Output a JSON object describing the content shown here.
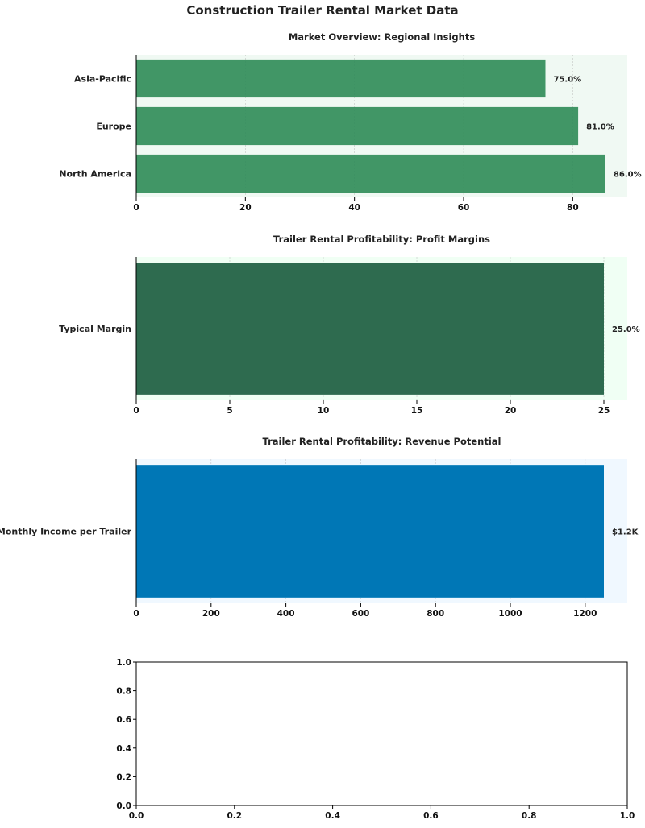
{
  "figure": {
    "title": "Construction Trailer Rental Market Data"
  },
  "chart_data": [
    {
      "type": "bar",
      "orientation": "horizontal",
      "title": "Market Overview: Regional Insights",
      "categories": [
        "North America",
        "Europe",
        "Asia-Pacific"
      ],
      "values": [
        86.0,
        81.0,
        75.0
      ],
      "data_labels": [
        "86.0%",
        "81.0%",
        "75.0%"
      ],
      "xlim": [
        0,
        90
      ],
      "xticks": [
        0,
        20,
        40,
        60,
        80
      ],
      "xtick_labels": [
        "0",
        "20",
        "40",
        "60",
        "80"
      ],
      "grid": true,
      "colors": {
        "bar": "#2e8b57",
        "bar_opacity": 0.9,
        "background": "#f0f9f3"
      }
    },
    {
      "type": "bar",
      "orientation": "horizontal",
      "title": "Trailer Rental Profitability: Profit Margins",
      "categories": [
        "Typical Margin"
      ],
      "values": [
        25.0
      ],
      "data_labels": [
        "25.0%"
      ],
      "xlim": [
        0,
        26.25
      ],
      "xticks": [
        0,
        5,
        10,
        15,
        20,
        25
      ],
      "xtick_labels": [
        "0",
        "5",
        "10",
        "15",
        "20",
        "25"
      ],
      "grid": true,
      "colors": {
        "bar": "#2e6b4f",
        "bar_opacity": 1,
        "background": "#f0fff4"
      }
    },
    {
      "type": "bar",
      "orientation": "horizontal",
      "title": "Trailer Rental Profitability: Revenue Potential",
      "categories": [
        "Monthly Income per Trailer"
      ],
      "values": [
        1250
      ],
      "data_labels": [
        "$1.2K"
      ],
      "xlim": [
        0,
        1312.5
      ],
      "xticks": [
        0,
        200,
        400,
        600,
        800,
        1000,
        1200
      ],
      "xtick_labels": [
        "0",
        "200",
        "400",
        "600",
        "800",
        "1000",
        "1200"
      ],
      "grid": true,
      "colors": {
        "bar": "#0077b6",
        "bar_opacity": 1,
        "background": "#f0f8ff"
      }
    },
    {
      "type": "empty",
      "title": "",
      "categories": [],
      "values": [],
      "data_labels": [],
      "xlim": [
        0,
        1
      ],
      "ylim": [
        0,
        1
      ],
      "xticks": [
        0,
        0.2,
        0.4,
        0.6,
        0.8,
        1.0
      ],
      "xtick_labels": [
        "0.0",
        "0.2",
        "0.4",
        "0.6",
        "0.8",
        "1.0"
      ],
      "yticks": [
        0,
        0.2,
        0.4,
        0.6,
        0.8,
        1.0
      ],
      "ytick_labels": [
        "0.0",
        "0.2",
        "0.4",
        "0.6",
        "0.8",
        "1.0"
      ],
      "grid": false,
      "colors": {
        "background": "#ffffff"
      }
    }
  ]
}
